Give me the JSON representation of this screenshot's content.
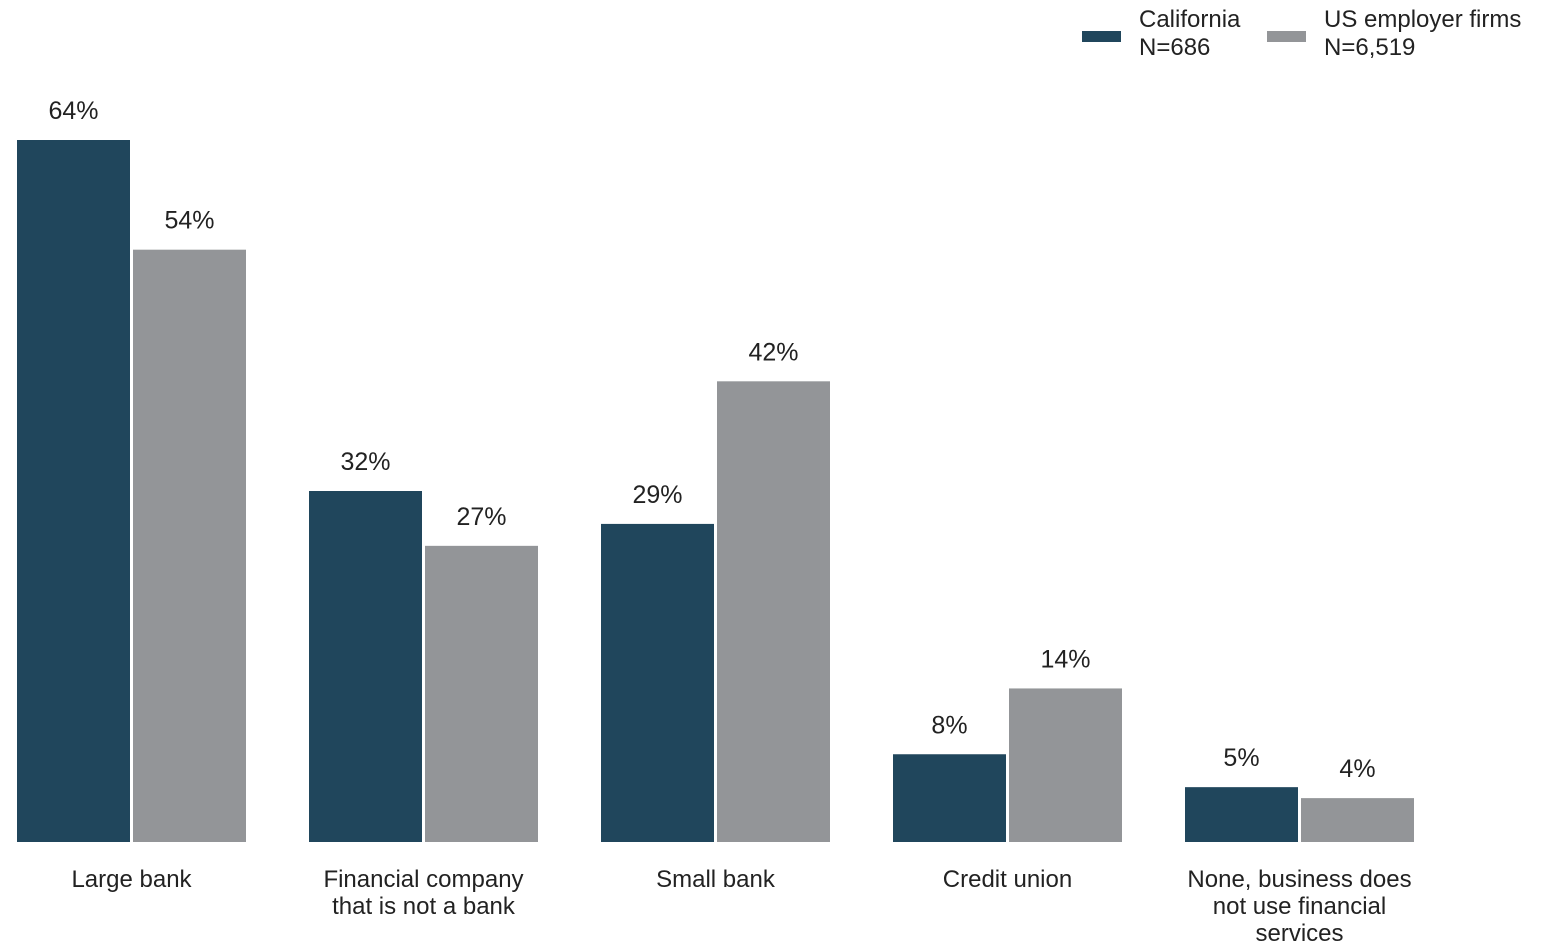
{
  "chart_data": {
    "type": "bar",
    "categories": [
      [
        "Large bank"
      ],
      [
        "Financial company",
        "that is not a bank"
      ],
      [
        "Small bank"
      ],
      [
        "Credit union"
      ],
      [
        "None, business does",
        "not use financial",
        "services"
      ]
    ],
    "series": [
      {
        "name": "California",
        "sublabel": "N=686",
        "color": "#20465c",
        "values": [
          64,
          32,
          29,
          8,
          5
        ]
      },
      {
        "name": "US employer firms",
        "sublabel": "N=6,519",
        "color": "#939598",
        "values": [
          54,
          27,
          42,
          14,
          4
        ]
      }
    ],
    "value_suffix": "%",
    "ylim": [
      0,
      64
    ],
    "grid": false,
    "legend_position": "top-right"
  }
}
